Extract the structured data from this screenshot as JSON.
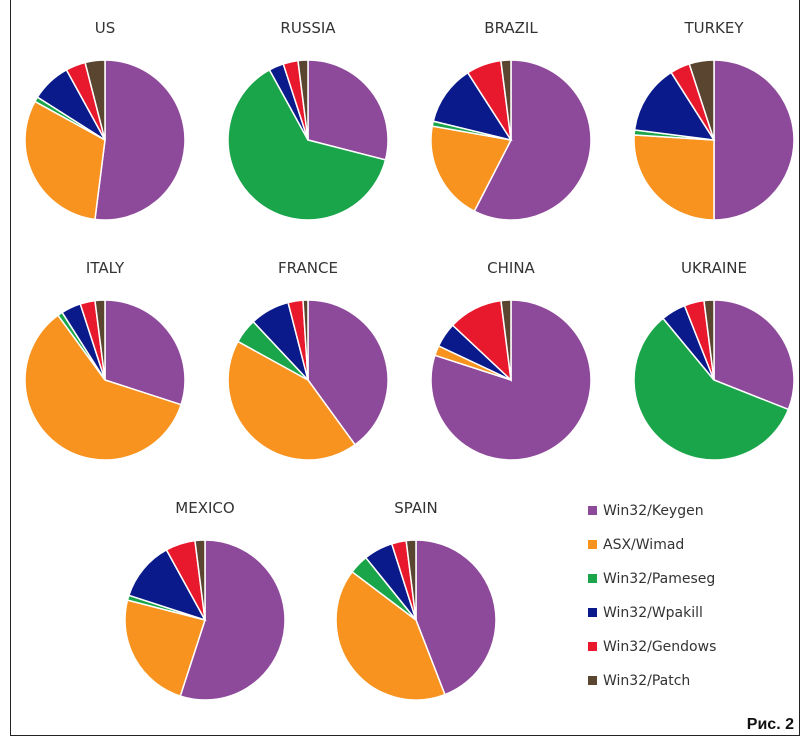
{
  "colors": {
    "Win32/Keygen": "#8e4a9a",
    "ASX/Wimad": "#f7931e",
    "Win32/Pameseg": "#1aa54a",
    "Win32/Wpakill": "#0a1a8a",
    "Win32/Gendows": "#e8192c",
    "Win32/Patch": "#5a4630"
  },
  "legend": [
    "Win32/Keygen",
    "ASX/Wimad",
    "Win32/Pameseg",
    "Win32/Wpakill",
    "Win32/Gendows",
    "Win32/Patch"
  ],
  "caption": "Рис. 2",
  "chart_data": {
    "type": "pie",
    "categories": [
      "Win32/Keygen",
      "ASX/Wimad",
      "Win32/Pameseg",
      "Win32/Wpakill",
      "Win32/Gendows",
      "Win32/Patch"
    ],
    "charts": [
      {
        "title": "US",
        "values": [
          52.0,
          31.0,
          1.0,
          8.0,
          4.0,
          4.0
        ]
      },
      {
        "title": "RUSSIA",
        "values": [
          29.0,
          0,
          63.0,
          3.0,
          3.0,
          2.0
        ]
      },
      {
        "title": "BRAZIL",
        "values": [
          57.0,
          20.0,
          1.0,
          12.0,
          7.0,
          2.0
        ]
      },
      {
        "title": "TURKEY",
        "values": [
          50.0,
          26.0,
          1.0,
          14.0,
          4.0,
          5.0
        ]
      },
      {
        "title": "ITALY",
        "values": [
          30.0,
          60.0,
          1.0,
          4.0,
          3.0,
          2.0
        ]
      },
      {
        "title": "FRANCE",
        "values": [
          40.0,
          43.0,
          5.0,
          8.0,
          3.0,
          1.0
        ]
      },
      {
        "title": "CHINA",
        "values": [
          80.0,
          2.0,
          0,
          5.0,
          11.0,
          2.0
        ]
      },
      {
        "title": "UKRAINE",
        "values": [
          31.0,
          0,
          58.0,
          5.0,
          4.0,
          2.0
        ]
      },
      {
        "title": "MEXICO",
        "values": [
          55.0,
          24.0,
          1.0,
          12.0,
          6.0,
          2.0
        ]
      },
      {
        "title": "SPAIN",
        "values": [
          45.0,
          42.0,
          4.0,
          6.0,
          3.0,
          2.0
        ]
      }
    ]
  }
}
